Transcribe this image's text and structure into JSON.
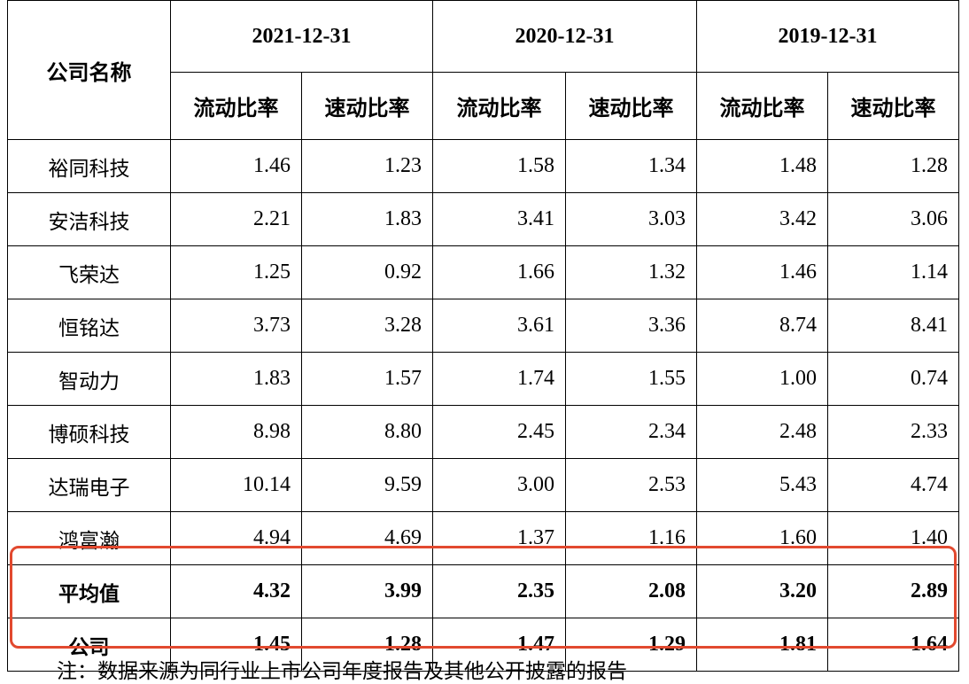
{
  "header": {
    "company_label": "公司名称",
    "periods": [
      "2021-12-31",
      "2020-12-31",
      "2019-12-31"
    ],
    "sub_current": "流动比率",
    "sub_quick": "速动比率"
  },
  "rows": [
    {
      "name": "裕同科技",
      "values": [
        "1.46",
        "1.23",
        "1.58",
        "1.34",
        "1.48",
        "1.28"
      ]
    },
    {
      "name": "安洁科技",
      "values": [
        "2.21",
        "1.83",
        "3.41",
        "3.03",
        "3.42",
        "3.06"
      ]
    },
    {
      "name": "飞荣达",
      "values": [
        "1.25",
        "0.92",
        "1.66",
        "1.32",
        "1.46",
        "1.14"
      ]
    },
    {
      "name": "恒铭达",
      "values": [
        "3.73",
        "3.28",
        "3.61",
        "3.36",
        "8.74",
        "8.41"
      ]
    },
    {
      "name": "智动力",
      "values": [
        "1.83",
        "1.57",
        "1.74",
        "1.55",
        "1.00",
        "0.74"
      ]
    },
    {
      "name": "博硕科技",
      "values": [
        "8.98",
        "8.80",
        "2.45",
        "2.34",
        "2.48",
        "2.33"
      ]
    },
    {
      "name": "达瑞电子",
      "values": [
        "10.14",
        "9.59",
        "3.00",
        "2.53",
        "5.43",
        "4.74"
      ]
    },
    {
      "name": "鸿富瀚",
      "values": [
        "4.94",
        "4.69",
        "1.37",
        "1.16",
        "1.60",
        "1.40"
      ]
    }
  ],
  "summary_rows": [
    {
      "name": "平均值",
      "values": [
        "4.32",
        "3.99",
        "2.35",
        "2.08",
        "3.20",
        "2.89"
      ]
    },
    {
      "name": "公司",
      "values": [
        "1.45",
        "1.28",
        "1.47",
        "1.29",
        "1.81",
        "1.64"
      ]
    }
  ],
  "highlight_color": "#e2492f",
  "note": "注：数据来源为同行业上市公司年度报告及其他公开披露的报告"
}
